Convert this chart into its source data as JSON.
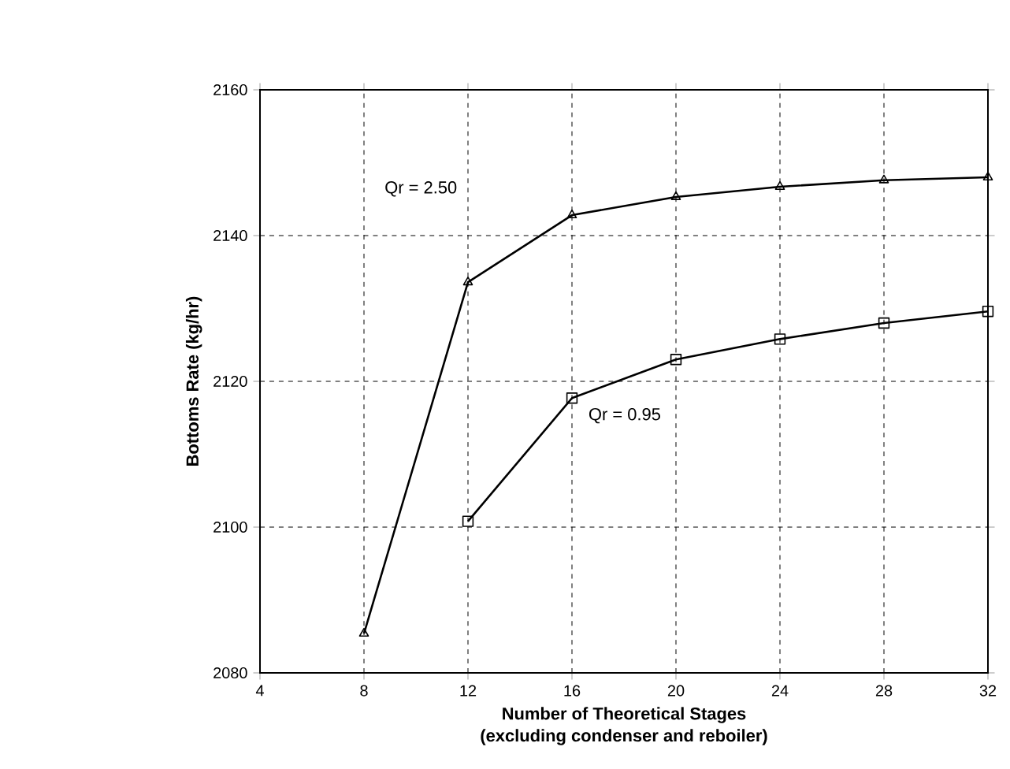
{
  "chart_data": {
    "type": "line",
    "xlabel": "Number of Theoretical Stages\n(excluding condenser and reboiler)",
    "ylabel": "Bottoms Rate (kg/hr)",
    "series": [
      {
        "color": "#000000",
        "marker": "triangle",
        "x": [
          8,
          12,
          16,
          20,
          24,
          28,
          32
        ],
        "values": [
          2085.4,
          2133.6,
          2142.8,
          2145.3,
          2146.7,
          2147.6,
          2148
        ]
      },
      {
        "color": "#000000",
        "marker": "square",
        "x": [
          12,
          16,
          20,
          24,
          28,
          32
        ],
        "values": [
          2100.8,
          2117.7,
          2123,
          2125.8,
          2128,
          2129.6
        ]
      }
    ],
    "annotations": [
      "Qr = 2.50",
      "Qr = 0.95"
    ],
    "xlim": [
      4,
      32
    ],
    "xticks": [
      4,
      8,
      12,
      16,
      20,
      24,
      28,
      32
    ],
    "ylim": [
      2080,
      2160
    ],
    "yticks": [
      2080,
      2100,
      2120,
      2140,
      2160
    ],
    "grid": true,
    "line_style": "solid"
  }
}
